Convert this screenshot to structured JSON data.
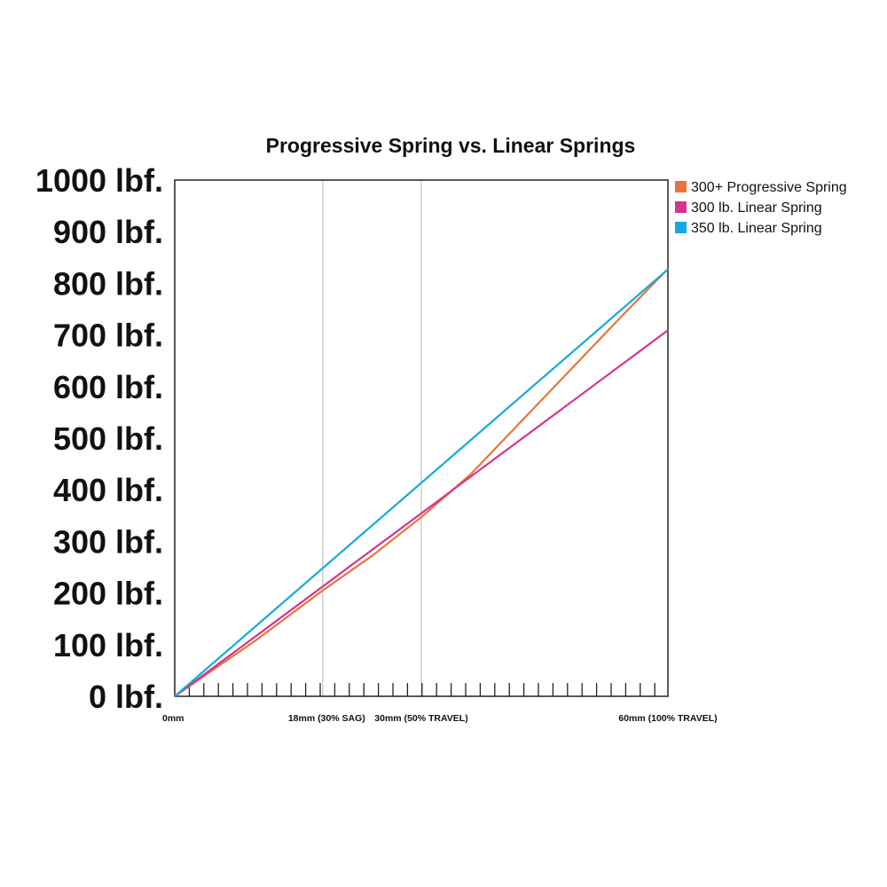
{
  "chart_data": {
    "type": "line",
    "title": "Progressive Spring vs. Linear Springs",
    "xlabel": "",
    "ylabel": "",
    "xlim": [
      0,
      60
    ],
    "ylim": [
      0,
      1000
    ],
    "y_ticks": [
      {
        "value": 0,
        "label": "0 lbf."
      },
      {
        "value": 100,
        "label": "100 lbf."
      },
      {
        "value": 200,
        "label": "200 lbf."
      },
      {
        "value": 300,
        "label": "300 lbf."
      },
      {
        "value": 400,
        "label": "400 lbf."
      },
      {
        "value": 500,
        "label": "500 lbf."
      },
      {
        "value": 600,
        "label": "600 lbf."
      },
      {
        "value": 700,
        "label": "700 lbf."
      },
      {
        "value": 800,
        "label": "800 lbf."
      },
      {
        "value": 900,
        "label": "900 lbf."
      },
      {
        "value": 1000,
        "label": "1000 lbf."
      }
    ],
    "x_labels": [
      {
        "value": 0,
        "label": "0mm"
      },
      {
        "value": 18,
        "label": "18mm (30% SAG)"
      },
      {
        "value": 30,
        "label": "30mm (50% TRAVEL)"
      },
      {
        "value": 60,
        "label": "60mm (100% TRAVEL)"
      }
    ],
    "reference_lines_x": [
      18,
      30
    ],
    "legend_position": "top-right",
    "series": [
      {
        "name": "300+ Progressive Spring",
        "color": "#e8743b",
        "x": [
          0,
          10,
          18,
          24,
          30,
          36,
          42,
          48,
          54,
          60
        ],
        "y": [
          0,
          110,
          205,
          272,
          347,
          430,
          530,
          630,
          730,
          828
        ]
      },
      {
        "name": "300 lb. Linear Spring",
        "color": "#d6338f",
        "x": [
          0,
          60
        ],
        "y": [
          0,
          709
        ]
      },
      {
        "name": "350 lb. Linear Spring",
        "color": "#14a9dc",
        "x": [
          0,
          60
        ],
        "y": [
          0,
          827
        ]
      }
    ]
  }
}
